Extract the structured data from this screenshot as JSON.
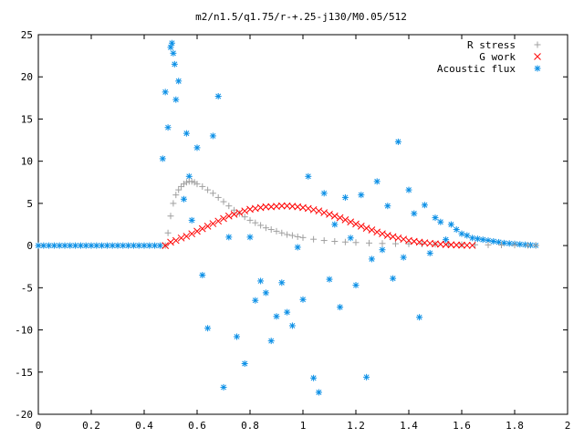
{
  "chart_data": {
    "type": "scatter",
    "title": "m2/n1.5/q1.75/r-+.25-j130/M0.05/512",
    "xlabel": "",
    "ylabel": "",
    "xlim": [
      0,
      2
    ],
    "ylim": [
      -20,
      25
    ],
    "xticks": [
      "0",
      "0.2",
      "0.4",
      "0.6",
      "0.8",
      "1",
      "1.2",
      "1.4",
      "1.6",
      "1.8",
      "2"
    ],
    "yticks": [
      "25",
      "20",
      "15",
      "10",
      "5",
      "0",
      "-5",
      "-10",
      "-15",
      "-20"
    ],
    "grid": false,
    "legend_position": "top-right",
    "series": [
      {
        "name": "R stress",
        "marker": "plus",
        "color": "#a0a0a0",
        "x": [
          0.48,
          0.49,
          0.5,
          0.51,
          0.52,
          0.53,
          0.54,
          0.55,
          0.56,
          0.57,
          0.58,
          0.59,
          0.6,
          0.62,
          0.64,
          0.66,
          0.68,
          0.7,
          0.72,
          0.74,
          0.76,
          0.78,
          0.8,
          0.82,
          0.84,
          0.86,
          0.88,
          0.9,
          0.92,
          0.94,
          0.96,
          0.98,
          1.0,
          1.04,
          1.08,
          1.12,
          1.16,
          1.2,
          1.25,
          1.3,
          1.35,
          1.4,
          1.45,
          1.5,
          1.55,
          1.6,
          1.65,
          1.7,
          1.75,
          1.8,
          1.85,
          1.88
        ],
        "y": [
          0.0,
          1.5,
          3.5,
          5.0,
          6.0,
          6.6,
          7.0,
          7.3,
          7.5,
          7.6,
          7.6,
          7.5,
          7.3,
          7.0,
          6.6,
          6.2,
          5.7,
          5.2,
          4.7,
          4.2,
          3.8,
          3.4,
          3.0,
          2.7,
          2.4,
          2.1,
          1.9,
          1.7,
          1.5,
          1.3,
          1.2,
          1.05,
          0.95,
          0.75,
          0.6,
          0.5,
          0.42,
          0.36,
          0.3,
          0.25,
          0.22,
          0.2,
          0.18,
          0.16,
          0.14,
          0.12,
          0.1,
          0.08,
          0.06,
          0.05,
          0.03,
          0.02
        ]
      },
      {
        "name": "G work",
        "marker": "cross",
        "color": "#ff0000",
        "x": [
          0.48,
          0.5,
          0.52,
          0.54,
          0.56,
          0.58,
          0.6,
          0.62,
          0.64,
          0.66,
          0.68,
          0.7,
          0.72,
          0.74,
          0.76,
          0.78,
          0.8,
          0.82,
          0.84,
          0.86,
          0.88,
          0.9,
          0.92,
          0.94,
          0.96,
          0.98,
          1.0,
          1.02,
          1.04,
          1.06,
          1.08,
          1.1,
          1.12,
          1.14,
          1.16,
          1.18,
          1.2,
          1.22,
          1.24,
          1.26,
          1.28,
          1.3,
          1.32,
          1.34,
          1.36,
          1.38,
          1.4,
          1.42,
          1.44,
          1.46,
          1.48,
          1.5,
          1.52,
          1.54,
          1.56,
          1.58,
          1.6,
          1.62,
          1.64
        ],
        "y": [
          0.0,
          0.4,
          0.6,
          0.9,
          1.1,
          1.4,
          1.7,
          2.0,
          2.3,
          2.6,
          2.9,
          3.2,
          3.5,
          3.7,
          3.9,
          4.1,
          4.3,
          4.4,
          4.5,
          4.6,
          4.6,
          4.65,
          4.7,
          4.7,
          4.65,
          4.6,
          4.5,
          4.4,
          4.25,
          4.1,
          3.9,
          3.7,
          3.5,
          3.3,
          3.05,
          2.8,
          2.55,
          2.3,
          2.05,
          1.85,
          1.6,
          1.4,
          1.2,
          1.05,
          0.9,
          0.75,
          0.6,
          0.5,
          0.4,
          0.33,
          0.26,
          0.2,
          0.16,
          0.12,
          0.09,
          0.07,
          0.05,
          0.03,
          0.02
        ]
      },
      {
        "name": "Acoustic flux",
        "marker": "star",
        "color": "#0a8fe6",
        "x": [
          0.0,
          0.02,
          0.04,
          0.06,
          0.08,
          0.1,
          0.12,
          0.14,
          0.16,
          0.18,
          0.2,
          0.22,
          0.24,
          0.26,
          0.28,
          0.3,
          0.32,
          0.34,
          0.36,
          0.38,
          0.4,
          0.42,
          0.44,
          0.46,
          0.47,
          0.48,
          0.49,
          0.5,
          0.505,
          0.51,
          0.515,
          0.52,
          0.53,
          0.55,
          0.56,
          0.57,
          0.58,
          0.6,
          0.62,
          0.64,
          0.66,
          0.68,
          0.7,
          0.72,
          0.75,
          0.78,
          0.8,
          0.82,
          0.84,
          0.86,
          0.88,
          0.9,
          0.92,
          0.94,
          0.96,
          0.98,
          1.0,
          1.02,
          1.04,
          1.06,
          1.08,
          1.1,
          1.12,
          1.14,
          1.16,
          1.18,
          1.2,
          1.22,
          1.24,
          1.26,
          1.28,
          1.3,
          1.32,
          1.34,
          1.36,
          1.38,
          1.4,
          1.42,
          1.44,
          1.46,
          1.48,
          1.5,
          1.52,
          1.54,
          1.56,
          1.58,
          1.6,
          1.62,
          1.64,
          1.66,
          1.68,
          1.7,
          1.72,
          1.74,
          1.76,
          1.78,
          1.8,
          1.82,
          1.84,
          1.86,
          1.88
        ],
        "y": [
          0.0,
          0.0,
          0.0,
          0.0,
          0.0,
          0.0,
          0.0,
          0.0,
          0.0,
          0.0,
          0.0,
          0.0,
          0.0,
          0.0,
          0.0,
          0.0,
          0.0,
          0.0,
          0.0,
          0.0,
          0.0,
          0.0,
          0.0,
          0.0,
          10.3,
          18.2,
          14.0,
          23.5,
          24.0,
          22.8,
          21.5,
          17.3,
          19.5,
          5.5,
          13.3,
          8.2,
          3.0,
          11.6,
          -3.5,
          -9.8,
          13.0,
          17.7,
          -16.8,
          1.0,
          -10.8,
          -14.0,
          1.0,
          -6.5,
          -4.2,
          -5.6,
          -11.3,
          -8.4,
          -4.4,
          -7.9,
          -9.5,
          -0.2,
          -6.4,
          8.2,
          -15.7,
          -17.4,
          6.2,
          -4.0,
          2.5,
          -7.3,
          5.7,
          0.9,
          -4.7,
          6.0,
          -15.6,
          -1.6,
          7.6,
          -0.5,
          4.7,
          -3.9,
          12.3,
          -1.4,
          6.6,
          3.8,
          -8.5,
          4.8,
          -0.9,
          3.3,
          2.8,
          0.7,
          2.5,
          1.9,
          1.4,
          1.2,
          0.9,
          0.8,
          0.7,
          0.6,
          0.5,
          0.4,
          0.3,
          0.25,
          0.2,
          0.15,
          0.1,
          0.05,
          0.02
        ]
      }
    ]
  }
}
